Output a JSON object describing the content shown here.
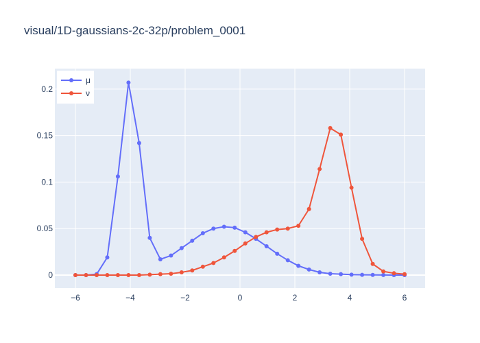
{
  "chart_data": {
    "type": "line",
    "title": "visual/1D-gaussians-2c-32p/problem_0001",
    "xlabel": "",
    "ylabel": "",
    "xlim": [
      -6.75,
      6.75
    ],
    "ylim": [
      -0.014,
      0.222
    ],
    "x_ticks": [
      -6,
      -4,
      -2,
      0,
      2,
      4,
      6
    ],
    "x_tick_labels": [
      "−6",
      "−4",
      "−2",
      "0",
      "2",
      "4",
      "6"
    ],
    "y_ticks": [
      0,
      0.05,
      0.1,
      0.15,
      0.2
    ],
    "y_tick_labels": [
      "0",
      "0.05",
      "0.1",
      "0.15",
      "0.2"
    ],
    "grid": true,
    "legend": "top-left",
    "x": [
      -6.0,
      -5.613,
      -5.226,
      -4.839,
      -4.452,
      -4.065,
      -3.677,
      -3.29,
      -2.903,
      -2.516,
      -2.129,
      -1.742,
      -1.355,
      -0.968,
      -0.581,
      -0.194,
      0.194,
      0.581,
      0.968,
      1.355,
      1.742,
      2.129,
      2.516,
      2.903,
      3.29,
      3.677,
      4.065,
      4.452,
      4.839,
      5.226,
      5.613,
      6.0
    ],
    "series": [
      {
        "name": "μ",
        "color": "#636efa",
        "values": [
          0.0,
          0.0,
          0.001,
          0.019,
          0.106,
          0.207,
          0.142,
          0.04,
          0.017,
          0.021,
          0.029,
          0.037,
          0.045,
          0.05,
          0.052,
          0.051,
          0.046,
          0.039,
          0.031,
          0.023,
          0.016,
          0.01,
          0.006,
          0.003,
          0.0015,
          0.001,
          0.0005,
          0.0003,
          0.0002,
          0.0001,
          0.0,
          0.0
        ]
      },
      {
        "name": "ν",
        "color": "#ef553b",
        "values": [
          0.0,
          0.0,
          0.0,
          0.0,
          0.0,
          0.0,
          0.0,
          0.0005,
          0.001,
          0.0015,
          0.003,
          0.005,
          0.009,
          0.013,
          0.019,
          0.026,
          0.034,
          0.041,
          0.046,
          0.049,
          0.05,
          0.053,
          0.071,
          0.114,
          0.158,
          0.151,
          0.094,
          0.039,
          0.012,
          0.004,
          0.002,
          0.001
        ]
      }
    ]
  }
}
